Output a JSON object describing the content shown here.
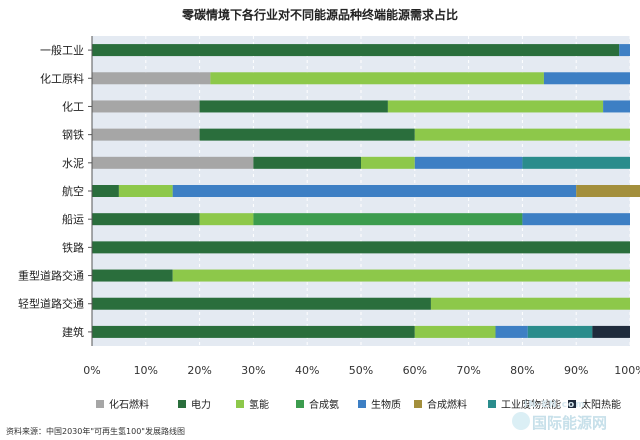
{
  "chart_data": {
    "type": "bar",
    "orientation": "horizontal",
    "stacked": true,
    "title": "零碳情境下各行业对不同能源品种终端能源需求占比",
    "categories": [
      "一般工业",
      "化工原料",
      "化工",
      "钢铁",
      "水泥",
      "航空",
      "船运",
      "铁路",
      "重型道路交通",
      "轻型道路交通",
      "建筑"
    ],
    "xlim": [
      0,
      100
    ],
    "x_ticks": [
      "0%",
      "10%",
      "20%",
      "30%",
      "40%",
      "50%",
      "60%",
      "70%",
      "80%",
      "90%",
      "100%"
    ],
    "grid": true,
    "legend_position": "bottom",
    "series": [
      {
        "name": "化石燃料",
        "color": "#a6a6a6",
        "values": [
          0,
          22,
          20,
          20,
          30,
          0,
          0,
          0,
          0,
          0,
          0
        ]
      },
      {
        "name": "电力",
        "color": "#2a6e3c",
        "values": [
          98,
          0,
          35,
          40,
          20,
          5,
          20,
          100,
          15,
          63,
          60
        ]
      },
      {
        "name": "氢能",
        "color": "#8dc84a",
        "values": [
          0,
          62,
          40,
          40,
          10,
          10,
          10,
          0,
          85,
          37,
          15
        ]
      },
      {
        "name": "合成氨",
        "color": "#3c9c4e",
        "values": [
          0,
          0,
          0,
          0,
          0,
          0,
          50,
          0,
          0,
          0,
          0
        ]
      },
      {
        "name": "生物质",
        "color": "#3d7fc4",
        "values": [
          2,
          16,
          5,
          0,
          20,
          75,
          20,
          0,
          0,
          0,
          6
        ]
      },
      {
        "name": "合成燃料",
        "color": "#a38f3c",
        "values": [
          0,
          0,
          0,
          0,
          0,
          15,
          0,
          0,
          0,
          0,
          0
        ]
      },
      {
        "name": "工业废物热能",
        "color": "#2a8c8c",
        "values": [
          0,
          0,
          0,
          0,
          20,
          0,
          0,
          0,
          0,
          0,
          12
        ]
      },
      {
        "name": "太阳热能",
        "color": "#1f2b3c",
        "values": [
          0,
          0,
          0,
          0,
          0,
          0,
          0,
          0,
          0,
          0,
          7
        ]
      }
    ]
  },
  "source_note": "资料来源：中国2030年\"可再生氢100\"发展路线图",
  "watermark": {
    "top": "IN-EN.com",
    "main": "国际能源网"
  }
}
